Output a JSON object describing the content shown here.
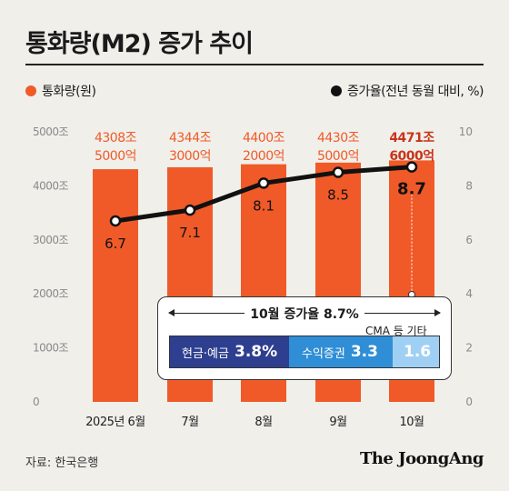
{
  "header": {
    "title": "통화량(M2) 증가 추이"
  },
  "legend": {
    "bar_label": "통화량(원)",
    "line_label": "증가율(전년 동월 대비, %)"
  },
  "chart_data": {
    "type": "bar",
    "categories": [
      "2025년 6월",
      "7월",
      "8월",
      "9월",
      "10월"
    ],
    "bar_series": {
      "name": "통화량(원)",
      "values": [
        4308.5,
        4344.3,
        4400.2,
        4430.5,
        4471.6
      ],
      "labels": [
        [
          "4308조",
          "5000억"
        ],
        [
          "4344조",
          "3000억"
        ],
        [
          "4400조",
          "2000억"
        ],
        [
          "4430조",
          "5000억"
        ],
        [
          "4471조",
          "6000억"
        ]
      ],
      "color": "#f05a28",
      "label_color": "#fff3ea",
      "highlight_label_color": "#c9341a"
    },
    "line_series": {
      "name": "증가율(전년 동월 대비, %)",
      "values": [
        6.7,
        7.1,
        8.1,
        8.5,
        8.7
      ],
      "labels": [
        "6.7",
        "7.1",
        "8.1",
        "8.5",
        "8.7"
      ],
      "color": "#111111"
    },
    "y_left": {
      "ticks": [
        "0",
        "1000조",
        "2000조",
        "3000조",
        "4000조",
        "5000조"
      ],
      "range": [
        0,
        5000
      ]
    },
    "y_right": {
      "ticks": [
        "0",
        "2",
        "4",
        "6",
        "8",
        "10"
      ],
      "range": [
        0,
        10
      ]
    },
    "grid": false,
    "legend_placement": "top"
  },
  "callout": {
    "title": "10월 증가율 8.7%",
    "other_label": "CMA 등 기타",
    "segments": [
      {
        "label": "현금·예금",
        "value": "3.8%",
        "color": "#2e3f8f"
      },
      {
        "label": "수익증권",
        "value": "3.3",
        "color": "#2f8ed6"
      },
      {
        "label": "",
        "value": "1.6",
        "color": "#9fd0f4"
      }
    ]
  },
  "footer": {
    "source": "자료: 한국은행",
    "brand": "The JoongAng"
  }
}
